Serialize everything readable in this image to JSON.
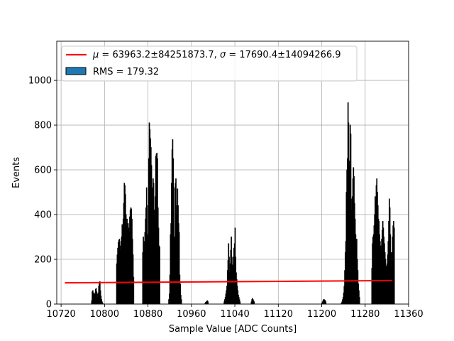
{
  "chart_data": {
    "type": "bar",
    "title": "",
    "xlabel": "Sample Value [ADC Counts]",
    "ylabel": "Events",
    "xlim": [
      10712,
      11360
    ],
    "ylim": [
      0,
      1175
    ],
    "x_ticks": [
      10720,
      10800,
      10880,
      10960,
      11040,
      11120,
      11200,
      11280,
      11360
    ],
    "y_ticks": [
      0,
      200,
      400,
      600,
      800,
      1000
    ],
    "grid": true,
    "legend_position": "top-left",
    "histogram": {
      "name": "RMS = 179.32",
      "color": "#1f77b4",
      "edgecolor": "#000000",
      "bin_width": 1,
      "clusters": [
        {
          "start": 10776,
          "values": [
            15,
            55,
            60,
            40,
            50,
            45,
            35,
            65,
            70,
            55,
            45,
            30,
            50,
            80,
            95,
            100,
            60,
            35,
            20,
            10,
            5
          ]
        },
        {
          "start": 10822,
          "values": [
            180,
            220,
            250,
            275,
            285,
            290,
            240,
            260,
            280,
            300,
            355,
            320,
            380,
            450,
            540,
            530,
            490,
            400,
            350,
            380,
            330,
            360,
            340,
            320,
            390,
            420,
            430,
            425,
            380,
            290,
            220,
            120
          ]
        },
        {
          "start": 10870,
          "values": [
            230,
            300,
            280,
            240,
            320,
            380,
            430,
            520,
            440,
            310,
            280,
            650,
            810,
            780,
            740,
            700,
            620,
            520,
            470,
            560,
            540,
            420,
            380,
            480,
            660,
            670,
            675,
            650,
            430,
            340,
            260,
            255
          ]
        },
        {
          "start": 10918,
          "values": [
            20,
            45,
            130,
            310,
            360,
            540,
            690,
            735,
            650,
            520,
            300,
            250,
            540,
            560,
            400,
            440,
            515,
            440,
            360,
            320,
            130,
            90,
            40,
            20
          ]
        },
        {
          "start": 10985,
          "values": [
            5,
            8,
            10,
            12,
            15,
            10
          ]
        },
        {
          "start": 11020,
          "values": [
            10,
            20,
            30,
            45,
            60,
            80,
            150,
            195,
            270,
            210,
            140,
            180,
            240,
            300,
            210,
            175,
            160,
            210,
            250,
            270,
            340,
            210,
            140,
            110,
            80,
            60,
            40,
            30,
            20,
            10
          ]
        },
        {
          "start": 11070,
          "values": [
            10,
            20,
            25,
            20,
            15,
            10
          ]
        },
        {
          "start": 11200,
          "values": [
            5,
            10,
            15,
            20,
            20,
            18,
            15,
            10
          ]
        },
        {
          "start": 11236,
          "values": [
            5,
            10,
            20,
            30,
            50,
            80,
            150,
            230,
            280,
            500,
            600,
            650,
            900,
            810,
            620,
            640,
            800,
            760,
            420,
            470,
            480,
            560,
            610,
            570,
            450,
            380,
            310,
            270,
            290,
            200,
            150,
            90,
            60,
            30
          ]
        },
        {
          "start": 11292,
          "values": [
            160,
            270,
            300,
            310,
            350,
            400,
            480,
            460,
            530,
            560,
            500,
            440,
            380,
            370,
            310,
            280,
            260,
            240,
            290,
            330,
            370,
            340,
            300,
            270,
            230,
            200,
            170,
            150,
            180,
            220,
            280,
            370,
            470,
            430,
            310,
            230,
            160,
            230,
            300,
            350,
            370,
            340
          ]
        }
      ]
    },
    "fit": {
      "name": "$\\mu = 63963.2 \\pm 84251873.7$, $\\sigma = 17690.4 \\pm 14094266.9$",
      "label_prefix_mu": "μ",
      "label_eq1": " = 63963.2±84251873.7, ",
      "label_prefix_sigma": "σ",
      "label_eq2": " = 17690.4±14094266.9",
      "color": "#ff0000",
      "x": [
        10727,
        11330
      ],
      "y": [
        95,
        105
      ]
    }
  }
}
